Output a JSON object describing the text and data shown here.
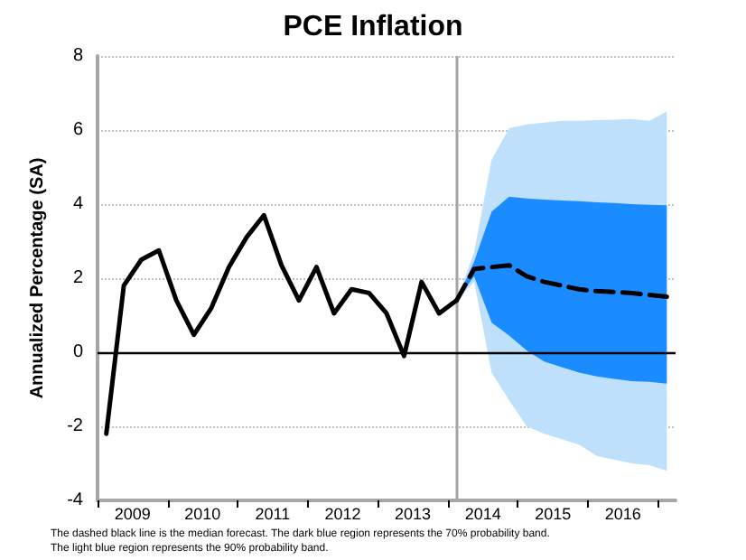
{
  "chart_data": {
    "type": "line",
    "title": "PCE Inflation",
    "ylabel": "Annualized Percentage (SA)",
    "annotations": [
      "The dashed black line is the median forecast. The dark blue region represents the 70% probability band.",
      "The light blue region represents the 90% probability band."
    ],
    "xlim": [
      2009,
      2017.25
    ],
    "ylim": [
      -4,
      8
    ],
    "yticks": [
      -4,
      -2,
      0,
      2,
      4,
      6,
      8
    ],
    "xticks": [
      {
        "value": 2009,
        "label": null
      },
      {
        "value": 2009.5,
        "label": "2009"
      },
      {
        "value": 2010,
        "label": null
      },
      {
        "value": 2010.5,
        "label": "2010"
      },
      {
        "value": 2011,
        "label": null
      },
      {
        "value": 2011.5,
        "label": "2011"
      },
      {
        "value": 2012,
        "label": null
      },
      {
        "value": 2012.5,
        "label": "2012"
      },
      {
        "value": 2013,
        "label": null
      },
      {
        "value": 2013.5,
        "label": "2013"
      },
      {
        "value": 2014,
        "label": null
      },
      {
        "value": 2014.5,
        "label": "2014"
      },
      {
        "value": 2015,
        "label": null
      },
      {
        "value": 2015.5,
        "label": "2015"
      },
      {
        "value": 2016,
        "label": null
      },
      {
        "value": 2016.5,
        "label": "2016"
      },
      {
        "value": 2017,
        "label": null
      }
    ],
    "grid": "y",
    "marker": "none",
    "ref_lines": [
      {
        "axis": "x",
        "value": 2014.125,
        "color": "#a6a6a6"
      },
      {
        "axis": "y",
        "value": 0,
        "color": "#000000"
      }
    ],
    "series": [
      {
        "color": "#bfe0fb",
        "x": [
          2014.125,
          2014.375,
          2014.625,
          2014.875,
          2015.125,
          2015.375,
          2015.625,
          2015.875,
          2016.125,
          2016.375,
          2016.625,
          2016.875,
          2017.125
        ],
        "values": [
          null,
          null,
          null,
          null,
          null,
          null,
          null,
          null,
          null,
          null,
          null,
          null,
          null
        ],
        "lower": [
          1.4,
          1.9,
          -0.55,
          -1.3,
          -2.0,
          -2.2,
          -2.35,
          -2.5,
          -2.8,
          -2.9,
          -3.0,
          -3.05,
          -3.2
        ],
        "upper": [
          1.4,
          2.7,
          5.2,
          6.05,
          6.15,
          6.2,
          6.25,
          6.25,
          6.27,
          6.28,
          6.3,
          6.25,
          6.5
        ]
      },
      {
        "color": "#1a8cff",
        "x": [
          2014.125,
          2014.375,
          2014.625,
          2014.875,
          2015.125,
          2015.375,
          2015.625,
          2015.875,
          2016.125,
          2016.375,
          2016.625,
          2016.875,
          2017.125
        ],
        "values": [
          null,
          null,
          null,
          null,
          null,
          null,
          null,
          null,
          null,
          null,
          null,
          null,
          null
        ],
        "lower": [
          1.4,
          2.05,
          0.8,
          0.45,
          0.05,
          -0.25,
          -0.4,
          -0.55,
          -0.65,
          -0.72,
          -0.78,
          -0.8,
          -0.85
        ],
        "upper": [
          1.4,
          2.45,
          3.8,
          4.2,
          4.15,
          4.12,
          4.1,
          4.08,
          4.05,
          4.03,
          4.0,
          3.98,
          3.97
        ]
      },
      {
        "color": "#000000",
        "line_style": "solid",
        "x": [
          2009.125,
          2009.375,
          2009.625,
          2009.875,
          2010.125,
          2010.375,
          2010.625,
          2010.875,
          2011.125,
          2011.375,
          2011.625,
          2011.875,
          2012.125,
          2012.375,
          2012.625,
          2012.875,
          2013.125,
          2013.375,
          2013.625,
          2013.875,
          2014.125
        ],
        "values": [
          -2.2,
          1.8,
          2.5,
          2.75,
          1.4,
          0.47,
          1.2,
          2.3,
          3.1,
          3.7,
          2.35,
          1.4,
          2.3,
          1.05,
          1.7,
          1.6,
          1.05,
          -0.1,
          1.9,
          1.05,
          1.4
        ]
      },
      {
        "color": "#000000",
        "line_style": "dashed",
        "x": [
          2014.125,
          2014.375,
          2014.625,
          2014.875,
          2015.125,
          2015.375,
          2015.625,
          2015.875,
          2016.125,
          2016.375,
          2016.625,
          2016.875,
          2017.125
        ],
        "values": [
          1.4,
          2.25,
          2.3,
          2.35,
          2.05,
          1.9,
          1.8,
          1.7,
          1.65,
          1.63,
          1.6,
          1.55,
          1.5
        ]
      }
    ]
  }
}
